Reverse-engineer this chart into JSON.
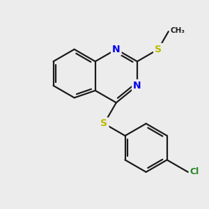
{
  "background_color": "#ececec",
  "bond_color": "#1a1a1a",
  "N_color": "#0000ee",
  "S_color": "#bbbb00",
  "Cl_color": "#228822",
  "line_width": 1.6,
  "figsize": [
    3.0,
    3.0
  ],
  "dpi": 100,
  "xlim": [
    0,
    10
  ],
  "ylim": [
    0,
    10
  ]
}
